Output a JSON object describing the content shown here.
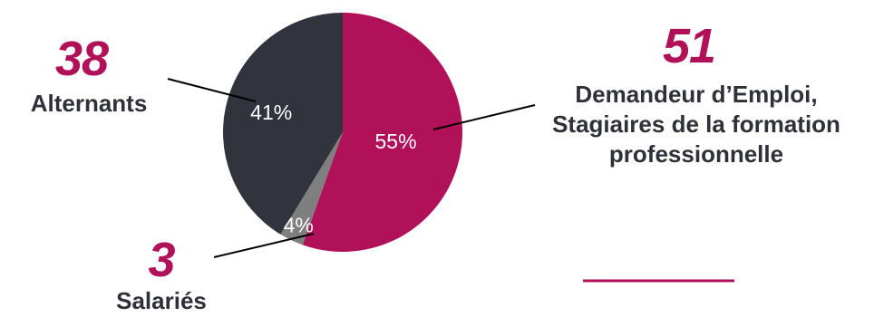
{
  "colors": {
    "accent": "#b01158",
    "dark": "#31343c",
    "grey": "#7f7f7f",
    "text": "#2f3138",
    "leader": "#000000"
  },
  "chart_data": {
    "type": "pie",
    "categories": [
      "Demandeur d’Emploi, Stagiaires de la formation professionnelle",
      "Salariés",
      "Alternants"
    ],
    "values": [
      51,
      3,
      38
    ],
    "percent_labels": [
      "55%",
      "4%",
      "41%"
    ],
    "slice_colors": [
      "#b01158",
      "#7f7f7f",
      "#31343c"
    ],
    "start": "top",
    "direction": "clockwise"
  },
  "callouts": {
    "alternants": {
      "number": "38",
      "label": "Alternants"
    },
    "demandeur": {
      "number": "51",
      "label_lines": [
        "Demandeur d’Emploi,",
        "Stagiaires de la formation",
        "professionnelle"
      ]
    },
    "salaries": {
      "number": "3",
      "label": "Salariés"
    }
  }
}
